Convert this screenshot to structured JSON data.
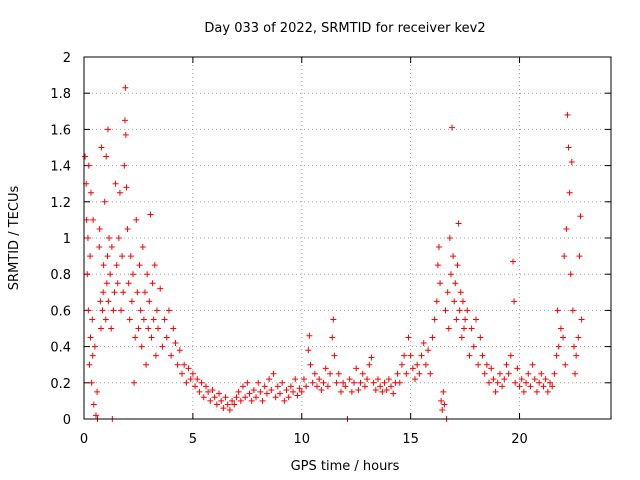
{
  "chart_data": {
    "type": "scatter",
    "title": "Day 033 of 2022, SRMTID for receiver kev2",
    "xlabel": "GPS time / hours",
    "ylabel": "SRMTID / TECUs",
    "xlim": [
      0,
      24.2
    ],
    "ylim": [
      0,
      2
    ],
    "xticks": [
      0,
      5,
      10,
      15,
      20
    ],
    "xtick_labels": [
      "0",
      "5",
      "10",
      "15",
      "20"
    ],
    "yticks": [
      0,
      0.2,
      0.4,
      0.6,
      0.8,
      1,
      1.2,
      1.4,
      1.6,
      1.8,
      2
    ],
    "ytick_labels": [
      "0",
      "0.2",
      "0.4",
      "0.6",
      "0.8",
      "1",
      "1.2",
      "1.4",
      "1.6",
      "1.8",
      "2"
    ],
    "grid": true,
    "marker": "+",
    "color": "#ff0000",
    "series": [
      {
        "name": "SRMTID",
        "points": [
          [
            0.05,
            1.45
          ],
          [
            0.1,
            1.3
          ],
          [
            0.12,
            1.1
          ],
          [
            0.15,
            0.8
          ],
          [
            0.18,
            1.0
          ],
          [
            0.2,
            0.6
          ],
          [
            0.22,
            1.4
          ],
          [
            0.25,
            0.3
          ],
          [
            0.28,
            0.9
          ],
          [
            0.3,
            0.45
          ],
          [
            0.32,
            1.25
          ],
          [
            0.35,
            0.2
          ],
          [
            0.38,
            0.55
          ],
          [
            0.4,
            0.35
          ],
          [
            0.42,
            1.1
          ],
          [
            0.45,
            0.08
          ],
          [
            0.5,
            0.4
          ],
          [
            0.55,
            0.02
          ],
          [
            0.6,
            0.15
          ],
          [
            0.62,
            0.0
          ],
          [
            0.7,
            0.95
          ],
          [
            0.72,
            1.05
          ],
          [
            0.75,
            0.65
          ],
          [
            0.78,
            0.5
          ],
          [
            0.8,
            1.5
          ],
          [
            0.85,
            0.6
          ],
          [
            0.88,
            0.7
          ],
          [
            0.9,
            0.85
          ],
          [
            0.95,
            1.2
          ],
          [
            1.0,
            0.55
          ],
          [
            1.02,
            1.45
          ],
          [
            1.05,
            0.75
          ],
          [
            1.08,
            0.9
          ],
          [
            1.1,
            1.6
          ],
          [
            1.12,
            0.65
          ],
          [
            1.15,
            1.0
          ],
          [
            1.2,
            0.8
          ],
          [
            1.25,
            0.5
          ],
          [
            1.28,
            0.95
          ],
          [
            1.3,
            0.0
          ],
          [
            1.35,
            0.6
          ],
          [
            1.4,
            0.7
          ],
          [
            1.45,
            1.3
          ],
          [
            1.5,
            0.85
          ],
          [
            1.55,
            0.75
          ],
          [
            1.6,
            1.0
          ],
          [
            1.65,
            1.25
          ],
          [
            1.7,
            0.6
          ],
          [
            1.75,
            0.9
          ],
          [
            1.8,
            0.7
          ],
          [
            1.85,
            1.4
          ],
          [
            1.88,
            1.65
          ],
          [
            1.9,
            1.83
          ],
          [
            1.92,
            1.57
          ],
          [
            1.95,
            1.28
          ],
          [
            2.0,
            1.05
          ],
          [
            2.05,
            0.75
          ],
          [
            2.1,
            0.55
          ],
          [
            2.15,
            0.9
          ],
          [
            2.2,
            0.65
          ],
          [
            2.25,
            0.8
          ],
          [
            2.3,
            0.2
          ],
          [
            2.35,
            0.45
          ],
          [
            2.4,
            1.1
          ],
          [
            2.45,
            0.7
          ],
          [
            2.5,
            0.5
          ],
          [
            2.55,
            0.85
          ],
          [
            2.6,
            0.6
          ],
          [
            2.65,
            0.4
          ],
          [
            2.7,
            0.95
          ],
          [
            2.75,
            0.55
          ],
          [
            2.8,
            0.7
          ],
          [
            2.85,
            0.3
          ],
          [
            2.9,
            0.8
          ],
          [
            2.95,
            0.5
          ],
          [
            3.0,
            0.65
          ],
          [
            3.05,
            1.13
          ],
          [
            3.1,
            0.45
          ],
          [
            3.15,
            0.75
          ],
          [
            3.2,
            0.55
          ],
          [
            3.25,
            0.85
          ],
          [
            3.3,
            0.35
          ],
          [
            3.35,
            0.6
          ],
          [
            3.4,
            0.5
          ],
          [
            3.5,
            0.72
          ],
          [
            3.6,
            0.4
          ],
          [
            3.7,
            0.55
          ],
          [
            3.8,
            0.45
          ],
          [
            3.9,
            0.6
          ],
          [
            4.0,
            0.35
          ],
          [
            4.1,
            0.5
          ],
          [
            4.2,
            0.42
          ],
          [
            4.3,
            0.3
          ],
          [
            4.4,
            0.38
          ],
          [
            4.5,
            0.25
          ],
          [
            4.6,
            0.3
          ],
          [
            4.7,
            0.2
          ],
          [
            4.8,
            0.28
          ],
          [
            4.9,
            0.22
          ],
          [
            5.0,
            0.25
          ],
          [
            5.1,
            0.18
          ],
          [
            5.2,
            0.22
          ],
          [
            5.3,
            0.15
          ],
          [
            5.4,
            0.2
          ],
          [
            5.5,
            0.12
          ],
          [
            5.6,
            0.18
          ],
          [
            5.7,
            0.15
          ],
          [
            5.8,
            0.1
          ],
          [
            5.9,
            0.16
          ],
          [
            6.0,
            0.12
          ],
          [
            6.1,
            0.08
          ],
          [
            6.2,
            0.14
          ],
          [
            6.3,
            0.1
          ],
          [
            6.4,
            0.06
          ],
          [
            6.5,
            0.12
          ],
          [
            6.6,
            0.08
          ],
          [
            6.7,
            0.05
          ],
          [
            6.8,
            0.1
          ],
          [
            6.9,
            0.08
          ],
          [
            7.0,
            0.12
          ],
          [
            7.1,
            0.15
          ],
          [
            7.2,
            0.1
          ],
          [
            7.3,
            0.18
          ],
          [
            7.4,
            0.12
          ],
          [
            7.5,
            0.2
          ],
          [
            7.6,
            0.14
          ],
          [
            7.7,
            0.1
          ],
          [
            7.8,
            0.16
          ],
          [
            7.9,
            0.12
          ],
          [
            8.0,
            0.2
          ],
          [
            8.1,
            0.15
          ],
          [
            8.2,
            0.1
          ],
          [
            8.3,
            0.18
          ],
          [
            8.4,
            0.14
          ],
          [
            8.5,
            0.22
          ],
          [
            8.6,
            0.16
          ],
          [
            8.7,
            0.25
          ],
          [
            8.8,
            0.12
          ],
          [
            8.9,
            0.18
          ],
          [
            9.0,
            0.14
          ],
          [
            9.1,
            0.2
          ],
          [
            9.2,
            0.1
          ],
          [
            9.3,
            0.16
          ],
          [
            9.4,
            0.12
          ],
          [
            9.5,
            0.18
          ],
          [
            9.6,
            0.15
          ],
          [
            9.7,
            0.22
          ],
          [
            9.8,
            0.13
          ],
          [
            9.9,
            0.17
          ],
          [
            10.0,
            0.15
          ],
          [
            10.1,
            0.22
          ],
          [
            10.2,
            0.18
          ],
          [
            10.3,
            0.38
          ],
          [
            10.35,
            0.46
          ],
          [
            10.4,
            0.3
          ],
          [
            10.5,
            0.2
          ],
          [
            10.6,
            0.25
          ],
          [
            10.7,
            0.18
          ],
          [
            10.8,
            0.22
          ],
          [
            10.9,
            0.16
          ],
          [
            11.0,
            0.2
          ],
          [
            11.1,
            0.28
          ],
          [
            11.2,
            0.18
          ],
          [
            11.3,
            0.25
          ],
          [
            11.4,
            0.45
          ],
          [
            11.45,
            0.55
          ],
          [
            11.5,
            0.35
          ],
          [
            11.6,
            0.2
          ],
          [
            11.7,
            0.25
          ],
          [
            11.8,
            0.15
          ],
          [
            11.9,
            0.2
          ],
          [
            12.0,
            0.18
          ],
          [
            12.1,
            0.0
          ],
          [
            12.2,
            0.22
          ],
          [
            12.3,
            0.15
          ],
          [
            12.4,
            0.2
          ],
          [
            12.5,
            0.28
          ],
          [
            12.6,
            0.16
          ],
          [
            12.7,
            0.2
          ],
          [
            12.8,
            0.25
          ],
          [
            12.9,
            0.18
          ],
          [
            13.0,
            0.22
          ],
          [
            13.1,
            0.3
          ],
          [
            13.2,
            0.34
          ],
          [
            13.3,
            0.2
          ],
          [
            13.4,
            0.16
          ],
          [
            13.5,
            0.22
          ],
          [
            13.6,
            0.18
          ],
          [
            13.7,
            0.15
          ],
          [
            13.8,
            0.2
          ],
          [
            13.9,
            0.16
          ],
          [
            14.0,
            0.22
          ],
          [
            14.1,
            0.18
          ],
          [
            14.2,
            0.14
          ],
          [
            14.3,
            0.2
          ],
          [
            14.4,
            0.25
          ],
          [
            14.5,
            0.2
          ],
          [
            14.6,
            0.3
          ],
          [
            14.7,
            0.35
          ],
          [
            14.8,
            0.25
          ],
          [
            14.9,
            0.45
          ],
          [
            15.0,
            0.35
          ],
          [
            15.1,
            0.28
          ],
          [
            15.2,
            0.22
          ],
          [
            15.3,
            0.3
          ],
          [
            15.4,
            0.25
          ],
          [
            15.5,
            0.35
          ],
          [
            15.6,
            0.42
          ],
          [
            15.7,
            0.3
          ],
          [
            15.8,
            0.38
          ],
          [
            15.9,
            0.25
          ],
          [
            16.0,
            0.45
          ],
          [
            16.1,
            0.55
          ],
          [
            16.2,
            0.65
          ],
          [
            16.25,
            0.85
          ],
          [
            16.3,
            0.95
          ],
          [
            16.35,
            0.75
          ],
          [
            16.4,
            0.1
          ],
          [
            16.45,
            0.05
          ],
          [
            16.5,
            0.15
          ],
          [
            16.55,
            0.08
          ],
          [
            16.6,
            0.6
          ],
          [
            16.65,
            0.0
          ],
          [
            16.7,
            0.7
          ],
          [
            16.75,
            0.5
          ],
          [
            16.8,
            1.0
          ],
          [
            16.85,
            0.8
          ],
          [
            16.9,
            1.61
          ],
          [
            16.95,
            0.9
          ],
          [
            17.0,
            0.65
          ],
          [
            17.05,
            0.75
          ],
          [
            17.1,
            0.55
          ],
          [
            17.15,
            0.85
          ],
          [
            17.2,
            1.08
          ],
          [
            17.25,
            0.6
          ],
          [
            17.3,
            0.7
          ],
          [
            17.35,
            0.45
          ],
          [
            17.4,
            0.65
          ],
          [
            17.45,
            0.5
          ],
          [
            17.5,
            0.55
          ],
          [
            17.6,
            0.6
          ],
          [
            17.7,
            0.35
          ],
          [
            17.8,
            0.5
          ],
          [
            17.9,
            0.4
          ],
          [
            18.0,
            0.55
          ],
          [
            18.1,
            0.3
          ],
          [
            18.2,
            0.45
          ],
          [
            18.3,
            0.35
          ],
          [
            18.4,
            0.25
          ],
          [
            18.5,
            0.3
          ],
          [
            18.6,
            0.2
          ],
          [
            18.7,
            0.28
          ],
          [
            18.8,
            0.22
          ],
          [
            18.9,
            0.15
          ],
          [
            19.0,
            0.2
          ],
          [
            19.1,
            0.25
          ],
          [
            19.2,
            0.18
          ],
          [
            19.3,
            0.22
          ],
          [
            19.4,
            0.3
          ],
          [
            19.5,
            0.25
          ],
          [
            19.6,
            0.35
          ],
          [
            19.7,
            0.87
          ],
          [
            19.75,
            0.65
          ],
          [
            19.8,
            0.2
          ],
          [
            19.9,
            0.28
          ],
          [
            20.0,
            0.18
          ],
          [
            20.1,
            0.22
          ],
          [
            20.2,
            0.15
          ],
          [
            20.3,
            0.2
          ],
          [
            20.4,
            0.25
          ],
          [
            20.5,
            0.18
          ],
          [
            20.6,
            0.3
          ],
          [
            20.7,
            0.22
          ],
          [
            20.8,
            0.15
          ],
          [
            20.9,
            0.2
          ],
          [
            21.0,
            0.25
          ],
          [
            21.1,
            0.18
          ],
          [
            21.2,
            0.22
          ],
          [
            21.3,
            0.15
          ],
          [
            21.4,
            0.2
          ],
          [
            21.5,
            0.18
          ],
          [
            21.6,
            0.25
          ],
          [
            21.7,
            0.35
          ],
          [
            21.75,
            0.6
          ],
          [
            21.8,
            0.4
          ],
          [
            21.9,
            0.5
          ],
          [
            22.0,
            0.45
          ],
          [
            22.05,
            0.9
          ],
          [
            22.1,
            0.3
          ],
          [
            22.15,
            1.05
          ],
          [
            22.2,
            1.68
          ],
          [
            22.25,
            1.5
          ],
          [
            22.3,
            1.25
          ],
          [
            22.35,
            0.8
          ],
          [
            22.4,
            1.42
          ],
          [
            22.45,
            0.6
          ],
          [
            22.5,
            0.4
          ],
          [
            22.55,
            0.25
          ],
          [
            22.6,
            0.35
          ],
          [
            22.7,
            0.45
          ],
          [
            22.75,
            0.9
          ],
          [
            22.8,
            1.12
          ],
          [
            22.85,
            0.55
          ]
        ]
      }
    ]
  }
}
